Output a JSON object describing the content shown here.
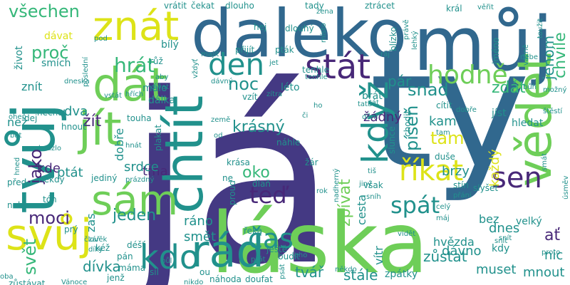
{
  "word_cloud": {
    "palette": {
      "indigo": "#443983",
      "blue": "#31688e",
      "steel": "#2c728e",
      "teal": "#21918c",
      "green": "#35b779",
      "lime": "#6ece58",
      "yellow": "#dde318",
      "purple": "#482878",
      "dark": "#440154"
    },
    "words": [
      {
        "text": "já"
      },
      {
        "text": "ty"
      },
      {
        "text": "láska"
      },
      {
        "text": "můj"
      },
      {
        "text": "daleko"
      },
      {
        "text": "tvůj"
      },
      {
        "text": "chtít"
      },
      {
        "text": "vědět"
      },
      {
        "text": "svůj"
      },
      {
        "text": "rád"
      },
      {
        "text": "jít"
      },
      {
        "text": "dát"
      },
      {
        "text": "sám"
      },
      {
        "text": "znát"
      },
      {
        "text": "stát"
      },
      {
        "text": "když"
      },
      {
        "text": "den"
      },
      {
        "text": "hodně"
      },
      {
        "text": "říkat"
      },
      {
        "text": "sen"
      },
      {
        "text": "kdo"
      },
      {
        "text": "teď"
      },
      {
        "text": "čas"
      },
      {
        "text": "spát"
      },
      {
        "text": "hrát"
      },
      {
        "text": "všechen"
      },
      {
        "text": "proč"
      },
      {
        "text": "noc"
      },
      {
        "text": "píseň"
      },
      {
        "text": "chvíle"
      },
      {
        "text": "jenom"
      },
      {
        "text": "snad"
      },
      {
        "text": "zdát"
      },
      {
        "text": "tam"
      },
      {
        "text": "krásný"
      },
      {
        "text": "moci"
      },
      {
        "text": "jako"
      },
      {
        "text": "žít"
      },
      {
        "text": "svět"
      },
      {
        "text": "jeden"
      },
      {
        "text": "zpívat"
      },
      {
        "text": "oko"
      },
      {
        "text": "tma"
      },
      {
        "text": "dívka"
      },
      {
        "text": "tvář"
      },
      {
        "text": "stále"
      },
      {
        "text": "zůstat"
      },
      {
        "text": "muset"
      },
      {
        "text": "mnout"
      },
      {
        "text": "dnes"
      },
      {
        "text": "ať"
      },
      {
        "text": "nic"
      },
      {
        "text": "kde"
      },
      {
        "text": "ptát"
      },
      {
        "text": "zas"
      },
      {
        "text": "ráno"
      },
      {
        "text": "smět"
      },
      {
        "text": "pár"
      },
      {
        "text": "žádný"
      },
      {
        "text": "brzy"
      },
      {
        "text": "každý"
      },
      {
        "text": "kam"
      },
      {
        "text": "dva"
      },
      {
        "text": "dobře"
      },
      {
        "text": "srdce"
      },
      {
        "text": "dávno"
      },
      {
        "text": "vítr"
      },
      {
        "text": "hvězda"
      },
      {
        "text": "cesta"
      },
      {
        "text": "zpátky"
      },
      {
        "text": "kdy"
      },
      {
        "text": "bez"
      },
      {
        "text": "velký"
      },
      {
        "text": "málo"
      },
      {
        "text": "bílý"
      },
      {
        "text": "léto"
      },
      {
        "text": "dálka"
      },
      {
        "text": "jíst"
      },
      {
        "text": "brát"
      },
      {
        "text": "hledat"
      },
      {
        "text": "než"
      },
      {
        "text": "život"
      },
      {
        "text": "dávat"
      },
      {
        "text": "smích"
      },
      {
        "text": "znít"
      },
      {
        "text": "vrátit"
      },
      {
        "text": "čekat"
      },
      {
        "text": "dlouho"
      },
      {
        "text": "tady"
      },
      {
        "text": "ztrácet"
      },
      {
        "text": "hej"
      },
      {
        "text": "dlouhý"
      },
      {
        "text": "přijít"
      },
      {
        "text": "pták"
      },
      {
        "text": "tenhle"
      },
      {
        "text": "proud"
      },
      {
        "text": "ještě"
      },
      {
        "text": "řeka"
      },
      {
        "text": "budit"
      },
      {
        "text": "náhoda"
      },
      {
        "text": "doufat"
      },
      {
        "text": "pán"
      },
      {
        "text": "máma"
      },
      {
        "text": "jenž"
      },
      {
        "text": "sníh"
      },
      {
        "text": "vůbec"
      },
      {
        "text": "zlý"
      },
      {
        "text": "štěstí"
      },
      {
        "text": "tón"
      },
      {
        "text": "prý"
      },
      {
        "text": "člověk"
      },
      {
        "text": "díky"
      },
      {
        "text": "déšť"
      },
      {
        "text": "stín"
      },
      {
        "text": "přání"
      },
      {
        "text": "žena"
      },
      {
        "text": "místo"
      },
      {
        "text": "blízko"
      },
      {
        "text": "možný"
      },
      {
        "text": "snít"
      },
      {
        "text": "slunce"
      },
      {
        "text": "duše"
      },
      {
        "text": "chodit"
      },
      {
        "text": "vzít"
      },
      {
        "text": "vstát"
      },
      {
        "text": "hřích"
      },
      {
        "text": "dívat"
      },
      {
        "text": "poslední"
      },
      {
        "text": "vždyť"
      },
      {
        "text": "tiš"
      },
      {
        "text": "zítra"
      },
      {
        "text": "ho"
      },
      {
        "text": "tam"
      },
      {
        "text": "růž"
      },
      {
        "text": "aby"
      },
      {
        "text": "oheň"
      },
      {
        "text": "bát"
      },
      {
        "text": "dobře"
      },
      {
        "text": "král"
      },
      {
        "text": "věřit"
      },
      {
        "text": "nebe"
      },
      {
        "text": "toužit"
      },
      {
        "text": "vážně"
      },
      {
        "text": "jméno"
      },
      {
        "text": "lehký"
      },
      {
        "text": "právě"
      },
      {
        "text": "ráj"
      },
      {
        "text": "jet"
      },
      {
        "text": "bůh"
      },
      {
        "text": "jiný"
      },
      {
        "text": "nadherný"
      },
      {
        "text": "celý"
      },
      {
        "text": "slyšet"
      },
      {
        "text": "smát"
      },
      {
        "text": "úsměv"
      },
      {
        "text": "proto"
      },
      {
        "text": "vidět"
      },
      {
        "text": "máj"
      },
      {
        "text": "snít"
      },
      {
        "text": "někdo"
      },
      {
        "text": "jeho"
      },
      {
        "text": "přát"
      },
      {
        "text": "síl"
      },
      {
        "text": "půl"
      },
      {
        "text": "ou"
      },
      {
        "text": "nikdo"
      },
      {
        "text": "psát"
      },
      {
        "text": "zůstávat"
      },
      {
        "text": "oba"
      },
      {
        "text": "Vánoce"
      },
      {
        "text": "kéž"
      },
      {
        "text": "zář"
      },
      {
        "text": "nebo"
      },
      {
        "text": "před"
      },
      {
        "text": "hned"
      },
      {
        "text": "kouzlo"
      },
      {
        "text": "někdy"
      },
      {
        "text": "jediný"
      },
      {
        "text": "prázdný"
      },
      {
        "text": "hnát"
      },
      {
        "text": "plakat"
      },
      {
        "text": "touha"
      },
      {
        "text": "hnout"
      },
      {
        "text": "nechat"
      },
      {
        "text": "dej"
      },
      {
        "text": "krása"
      },
      {
        "text": "dlaň"
      },
      {
        "text": "ne"
      },
      {
        "text": "žár"
      },
      {
        "text": "rok"
      },
      {
        "text": "náhle"
      },
      {
        "text": "od"
      },
      {
        "text": "země"
      },
      {
        "text": "dávný"
      },
      {
        "text": "tenhle"
      },
      {
        "text": "tát"
      },
      {
        "text": "tata"
      },
      {
        "text": "cítit"
      },
      {
        "text": "dům"
      },
      {
        "text": "či"
      },
      {
        "text": "však"
      },
      {
        "text": "být"
      },
      {
        "text": "pod"
      },
      {
        "text": "dneska"
      },
      {
        "text": "majít"
      }
    ]
  }
}
